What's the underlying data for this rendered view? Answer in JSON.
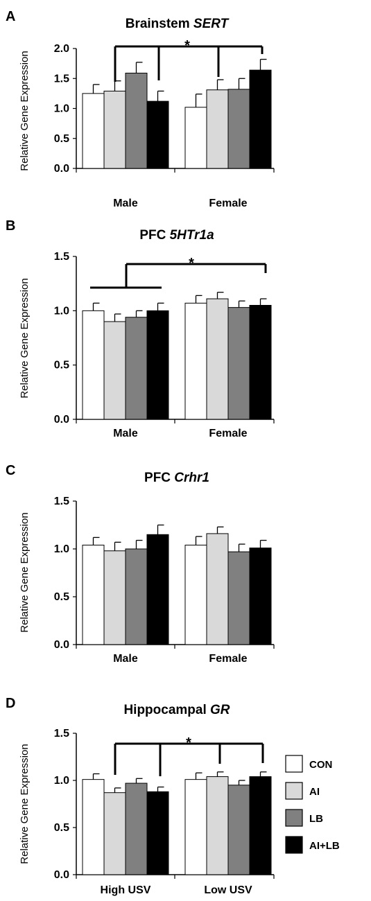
{
  "legend": [
    {
      "label": "CON",
      "color": "#ffffff"
    },
    {
      "label": "AI",
      "color": "#d9d9d9"
    },
    {
      "label": "LB",
      "color": "#808080"
    },
    {
      "label": "AI+LB",
      "color": "#000000"
    }
  ],
  "chart_data": [
    {
      "panel": "A",
      "type": "bar",
      "title_plain": "Brainstem ",
      "title_italic": "SERT",
      "ylabel": "Relative Gene Expression",
      "ylim": [
        0,
        2.0
      ],
      "yticks": [
        "0.0",
        "0.5",
        "1.0",
        "1.5",
        "2.0"
      ],
      "categories": [
        "Male",
        "Female"
      ],
      "series": [
        {
          "name": "CON",
          "values": [
            1.25,
            1.02
          ],
          "errors": [
            0.15,
            0.22
          ]
        },
        {
          "name": "AI",
          "values": [
            1.29,
            1.31
          ],
          "errors": [
            0.17,
            0.17
          ]
        },
        {
          "name": "LB",
          "values": [
            1.59,
            1.32
          ],
          "errors": [
            0.18,
            0.18
          ]
        },
        {
          "name": "AI+LB",
          "values": [
            1.12,
            1.64
          ],
          "errors": [
            0.17,
            0.18
          ]
        }
      ],
      "significance": "*"
    },
    {
      "panel": "B",
      "type": "bar",
      "title_plain": "PFC ",
      "title_italic": "5HTr1a",
      "ylabel": "Relative Gene Expression",
      "ylim": [
        0,
        1.5
      ],
      "yticks": [
        "0.0",
        "0.5",
        "1.0",
        "1.5"
      ],
      "categories": [
        "Male",
        "Female"
      ],
      "series": [
        {
          "name": "CON",
          "values": [
            1.0,
            1.07
          ],
          "errors": [
            0.07,
            0.07
          ]
        },
        {
          "name": "AI",
          "values": [
            0.9,
            1.11
          ],
          "errors": [
            0.07,
            0.06
          ]
        },
        {
          "name": "LB",
          "values": [
            0.94,
            1.03
          ],
          "errors": [
            0.06,
            0.06
          ]
        },
        {
          "name": "AI+LB",
          "values": [
            1.0,
            1.05
          ],
          "errors": [
            0.07,
            0.06
          ]
        }
      ],
      "significance": "*"
    },
    {
      "panel": "C",
      "type": "bar",
      "title_plain": "PFC ",
      "title_italic": "Crhr1",
      "ylabel": "Relative Gene Expression",
      "ylim": [
        0,
        1.5
      ],
      "yticks": [
        "0.0",
        "0.5",
        "1.0",
        "1.5"
      ],
      "categories": [
        "Male",
        "Female"
      ],
      "series": [
        {
          "name": "CON",
          "values": [
            1.04,
            1.04
          ],
          "errors": [
            0.08,
            0.09
          ]
        },
        {
          "name": "AI",
          "values": [
            0.98,
            1.16
          ],
          "errors": [
            0.09,
            0.07
          ]
        },
        {
          "name": "LB",
          "values": [
            1.0,
            0.97
          ],
          "errors": [
            0.09,
            0.08
          ]
        },
        {
          "name": "AI+LB",
          "values": [
            1.15,
            1.01
          ],
          "errors": [
            0.1,
            0.08
          ]
        }
      ],
      "significance": ""
    },
    {
      "panel": "D",
      "type": "bar",
      "title_plain": "Hippocampal ",
      "title_italic": "GR",
      "ylabel": "Relative Gene Expression",
      "ylim": [
        0,
        1.5
      ],
      "yticks": [
        "0.0",
        "0.5",
        "1.0",
        "1.5"
      ],
      "categories": [
        "High USV",
        "Low USV"
      ],
      "series": [
        {
          "name": "CON",
          "values": [
            1.01,
            1.01
          ],
          "errors": [
            0.06,
            0.07
          ]
        },
        {
          "name": "AI",
          "values": [
            0.87,
            1.04
          ],
          "errors": [
            0.05,
            0.05
          ]
        },
        {
          "name": "LB",
          "values": [
            0.97,
            0.95
          ],
          "errors": [
            0.05,
            0.05
          ]
        },
        {
          "name": "AI+LB",
          "values": [
            0.88,
            1.04
          ],
          "errors": [
            0.05,
            0.05
          ]
        }
      ],
      "significance": "*"
    }
  ]
}
